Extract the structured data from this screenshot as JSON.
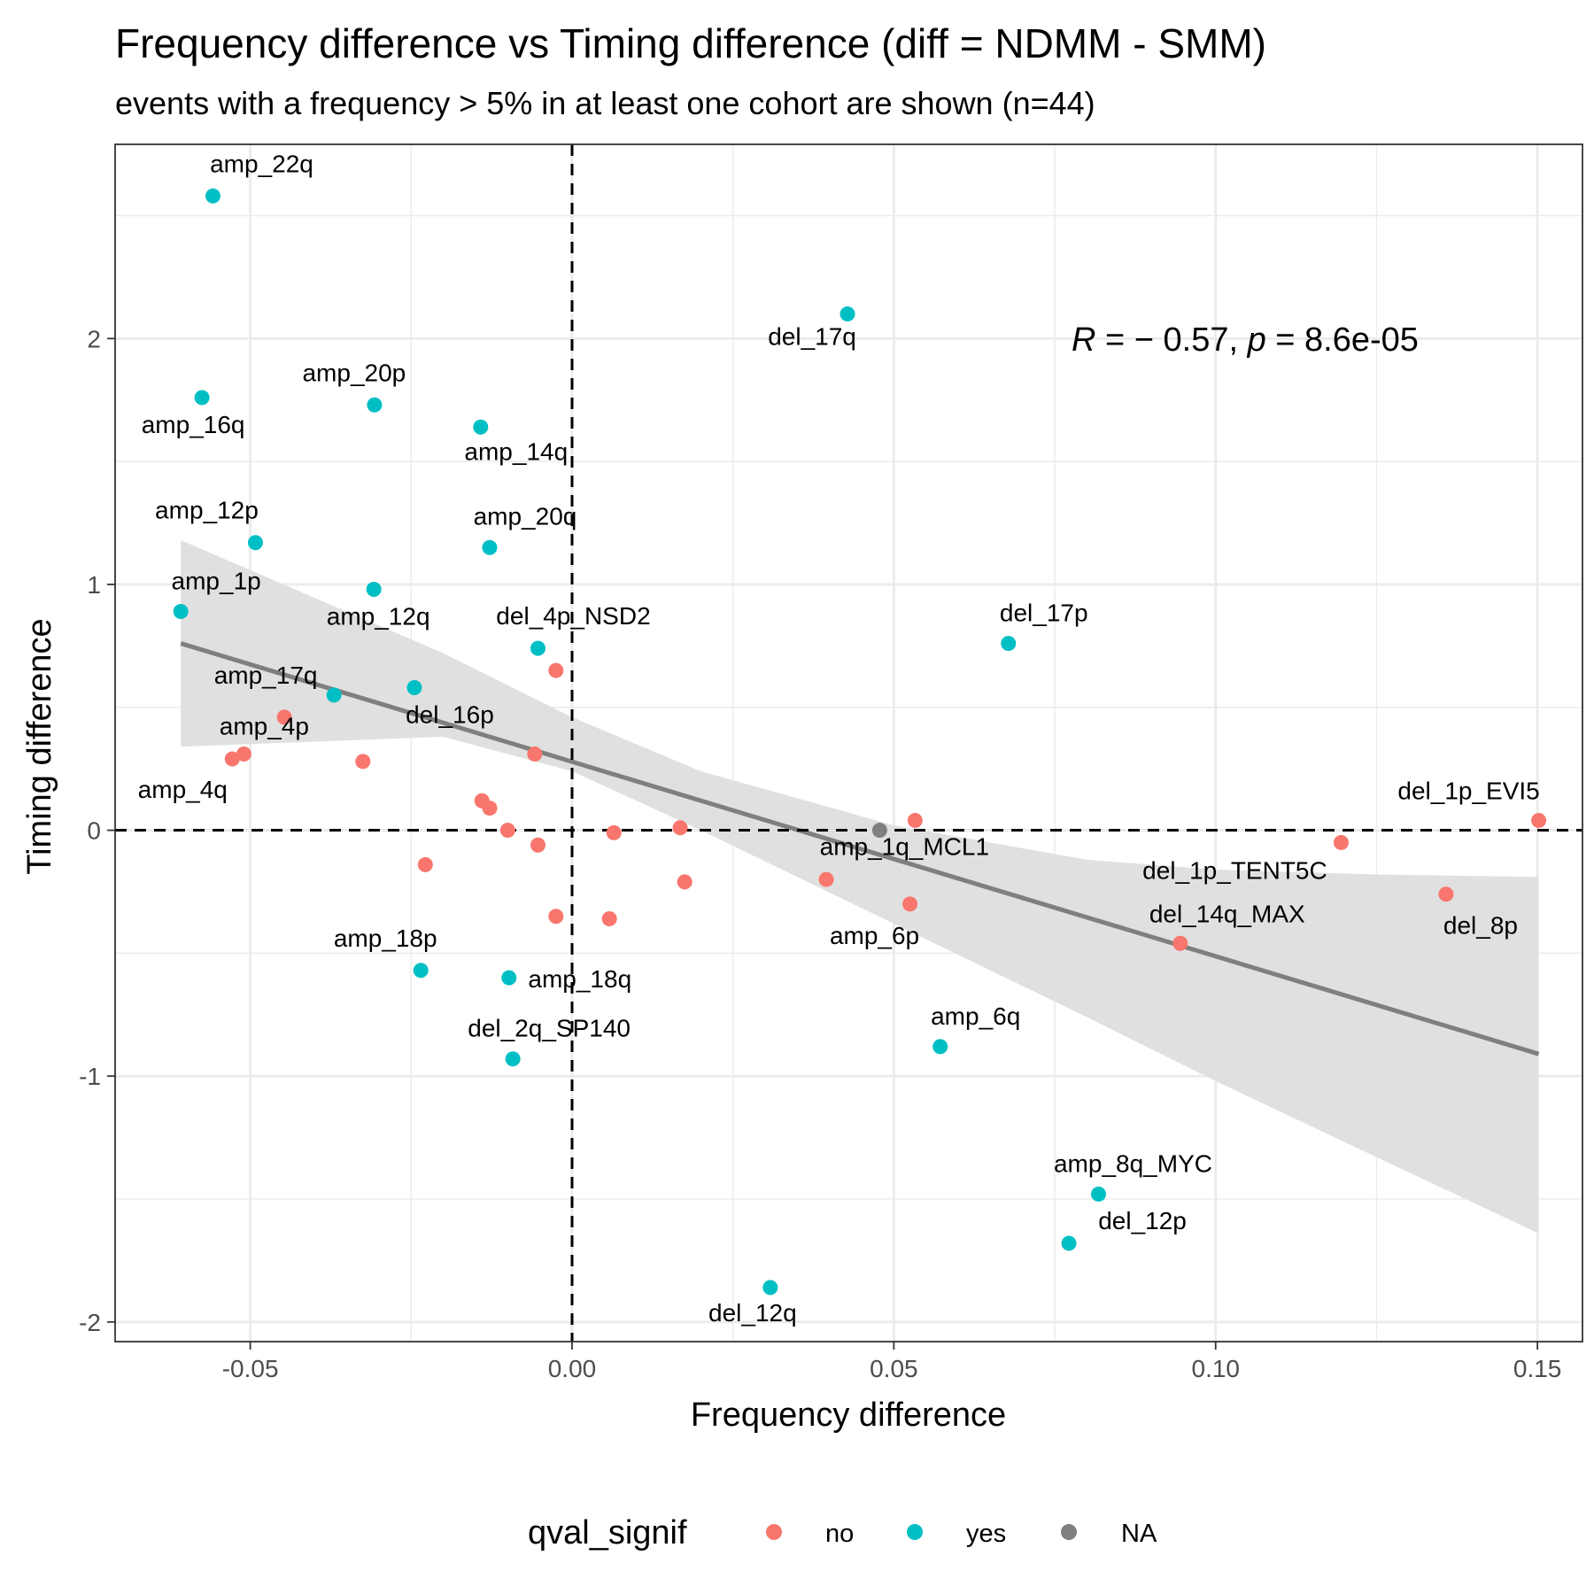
{
  "chart_data": {
    "type": "scatter",
    "title": "Frequency difference vs Timing difference (diff = NDMM - SMM)",
    "subtitle": "events with a frequency > 5% in at least one cohort are shown (n=44)",
    "xlabel": "Frequency difference",
    "ylabel": "Timing difference",
    "xlim": [
      -0.071,
      0.157
    ],
    "ylim": [
      -2.08,
      2.79
    ],
    "x_ticks": [
      -0.05,
      0.0,
      0.05,
      0.1,
      0.15
    ],
    "x_tick_labels": [
      "-0.05",
      "0.00",
      "0.05",
      "0.10",
      "0.15"
    ],
    "y_ticks": [
      -2,
      -1,
      0,
      1,
      2
    ],
    "y_tick_labels": [
      "-2",
      "-1",
      "0",
      "1",
      "2"
    ],
    "grid": true,
    "reference_lines": {
      "x": 0,
      "y": 0
    },
    "annotation": {
      "R_label": "R",
      "eq_part": " = − 0.57, ",
      "p_label": "p",
      "p_part": " = 8.6e-05"
    },
    "legend": {
      "title": "qval_signif",
      "position": "bottom",
      "entries": [
        "no",
        "yes",
        "NA"
      ]
    },
    "colors": {
      "no": "#F8766D",
      "yes": "#00BFC4",
      "NA": "#7F7F7F",
      "fit": "#7F7F7F",
      "ribbon": "#E0E0E0"
    },
    "fit_line": {
      "x": [
        -0.0608,
        0.1502
      ],
      "y": [
        0.76,
        -0.91
      ]
    },
    "confidence_band": {
      "x": [
        -0.0608,
        -0.02,
        0.0,
        0.02,
        0.05,
        0.08,
        0.1,
        0.125,
        0.1502
      ],
      "upper": [
        1.18,
        0.72,
        0.46,
        0.24,
        0.02,
        -0.12,
        -0.16,
        -0.18,
        -0.19
      ],
      "lower": [
        0.34,
        0.38,
        0.24,
        0.0,
        -0.38,
        -0.76,
        -1.02,
        -1.33,
        -1.64
      ]
    },
    "points": [
      {
        "x": -0.0558,
        "y": 2.58,
        "group": "yes",
        "label": "amp_22q"
      },
      {
        "x": 0.0428,
        "y": 2.1,
        "group": "yes",
        "label": "del_17q"
      },
      {
        "x": -0.0575,
        "y": 1.76,
        "group": "yes",
        "label": "amp_16q"
      },
      {
        "x": -0.0307,
        "y": 1.73,
        "group": "yes",
        "label": "amp_20p"
      },
      {
        "x": -0.0142,
        "y": 1.64,
        "group": "yes",
        "label": "amp_14q"
      },
      {
        "x": -0.0492,
        "y": 1.17,
        "group": "yes",
        "label": "amp_12p"
      },
      {
        "x": -0.0128,
        "y": 1.15,
        "group": "yes",
        "label": "amp_20q"
      },
      {
        "x": -0.0308,
        "y": 0.98,
        "group": "yes",
        "label": "amp_12q"
      },
      {
        "x": -0.0608,
        "y": 0.89,
        "group": "yes",
        "label": "amp_1p"
      },
      {
        "x": -0.0053,
        "y": 0.74,
        "group": "yes",
        "label": "del_4p_NSD2"
      },
      {
        "x": 0.0678,
        "y": 0.76,
        "group": "yes",
        "label": "del_17p"
      },
      {
        "x": -0.0025,
        "y": 0.65,
        "group": "no",
        "label": ""
      },
      {
        "x": -0.0245,
        "y": 0.58,
        "group": "yes",
        "label": "del_16p"
      },
      {
        "x": -0.037,
        "y": 0.55,
        "group": "yes",
        "label": "amp_17q"
      },
      {
        "x": -0.0447,
        "y": 0.46,
        "group": "no",
        "label": ""
      },
      {
        "x": -0.051,
        "y": 0.31,
        "group": "no",
        "label": "amp_4p"
      },
      {
        "x": -0.0528,
        "y": 0.29,
        "group": "no",
        "label": "amp_4q"
      },
      {
        "x": -0.0325,
        "y": 0.28,
        "group": "no",
        "label": ""
      },
      {
        "x": -0.0058,
        "y": 0.31,
        "group": "no",
        "label": ""
      },
      {
        "x": -0.014,
        "y": 0.12,
        "group": "no",
        "label": ""
      },
      {
        "x": -0.0128,
        "y": 0.09,
        "group": "no",
        "label": ""
      },
      {
        "x": -0.01,
        "y": 0.0,
        "group": "no",
        "label": ""
      },
      {
        "x": -0.0053,
        "y": -0.06,
        "group": "no",
        "label": ""
      },
      {
        "x": 0.0065,
        "y": -0.01,
        "group": "no",
        "label": ""
      },
      {
        "x": 0.0168,
        "y": 0.01,
        "group": "no",
        "label": ""
      },
      {
        "x": 0.0478,
        "y": 0.0,
        "group": "NA",
        "label": ""
      },
      {
        "x": 0.0533,
        "y": 0.04,
        "group": "no",
        "label": "amp_1q_MCL1"
      },
      {
        "x": 0.1502,
        "y": 0.04,
        "group": "no",
        "label": "del_1p_EVI5"
      },
      {
        "x": -0.0228,
        "y": -0.14,
        "group": "no",
        "label": ""
      },
      {
        "x": 0.0175,
        "y": -0.21,
        "group": "no",
        "label": ""
      },
      {
        "x": 0.0395,
        "y": -0.2,
        "group": "no",
        "label": ""
      },
      {
        "x": 0.1195,
        "y": -0.05,
        "group": "no",
        "label": "del_1p_TENT5C"
      },
      {
        "x": 0.1358,
        "y": -0.26,
        "group": "no",
        "label": "del_8p"
      },
      {
        "x": 0.0525,
        "y": -0.3,
        "group": "no",
        "label": "amp_6p"
      },
      {
        "x": -0.0025,
        "y": -0.35,
        "group": "no",
        "label": ""
      },
      {
        "x": 0.0058,
        "y": -0.36,
        "group": "no",
        "label": ""
      },
      {
        "x": 0.0945,
        "y": -0.46,
        "group": "no",
        "label": "del_14q_MAX"
      },
      {
        "x": -0.0235,
        "y": -0.57,
        "group": "yes",
        "label": "amp_18p"
      },
      {
        "x": -0.0098,
        "y": -0.6,
        "group": "yes",
        "label": "amp_18q"
      },
      {
        "x": -0.0092,
        "y": -0.93,
        "group": "yes",
        "label": "del_2q_SP140"
      },
      {
        "x": 0.0572,
        "y": -0.88,
        "group": "yes",
        "label": "amp_6q"
      },
      {
        "x": 0.0818,
        "y": -1.48,
        "group": "yes",
        "label": "amp_8q_MYC"
      },
      {
        "x": 0.0772,
        "y": -1.68,
        "group": "yes",
        "label": "del_12p"
      },
      {
        "x": 0.0308,
        "y": -1.86,
        "group": "yes",
        "label": "del_12q"
      }
    ]
  }
}
